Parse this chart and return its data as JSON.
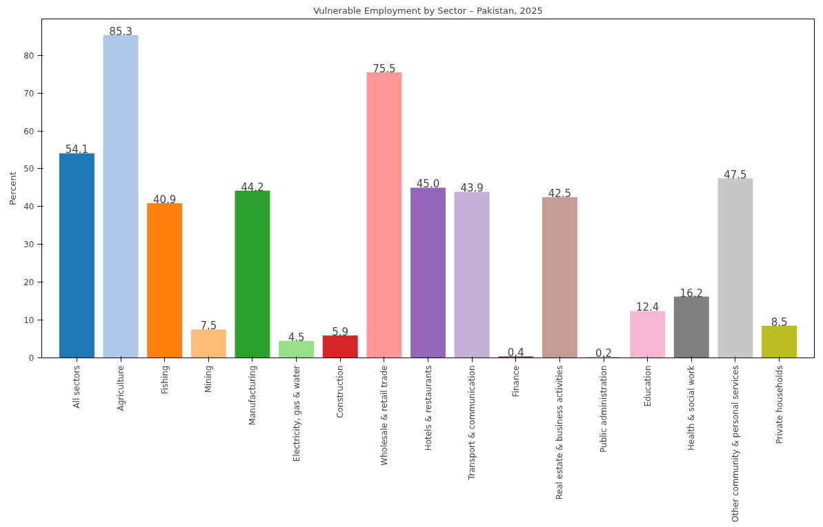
{
  "chart_data": {
    "type": "bar",
    "title": "Vulnerable Employment by Sector – Pakistan, 2025",
    "ylabel": "Percent",
    "categories": [
      "All sectors",
      "Agriculture",
      "Fishing",
      "Mining",
      "Manufacturing",
      "Electricity, gas & water",
      "Construction",
      "Wholesale & retail trade",
      "Hotels & restaurants",
      "Transport & communication",
      "Finance",
      "Real estate & business activities",
      "Public administration",
      "Education",
      "Health & social work",
      "Other community & personal services",
      "Private households"
    ],
    "values": [
      54.1,
      85.3,
      40.9,
      7.5,
      44.2,
      4.5,
      5.9,
      75.5,
      45.0,
      43.9,
      0.4,
      42.5,
      0.2,
      12.4,
      16.2,
      47.5,
      8.5
    ],
    "colors": [
      "#1f77b4",
      "#aec7e8",
      "#ff7f0e",
      "#ffbb78",
      "#2ca02c",
      "#98df8a",
      "#d62728",
      "#ff9896",
      "#9467bd",
      "#c5b0d5",
      "#8c564b",
      "#c49c94",
      "#e377c2",
      "#f7b6d2",
      "#7f7f7f",
      "#c7c7c7",
      "#bcbd22"
    ],
    "value_labels": [
      "54.1",
      "85.3",
      "40.9",
      "7.5",
      "44.2",
      "4.5",
      "5.9",
      "75.5",
      "45.0",
      "43.9",
      "0.4",
      "42.5",
      "0.2",
      "12.4",
      "16.2",
      "47.5",
      "8.5"
    ],
    "ylim": [
      0,
      89.6
    ],
    "yticks": [
      0,
      10,
      20,
      30,
      40,
      50,
      60,
      70,
      80
    ],
    "grid": false
  }
}
